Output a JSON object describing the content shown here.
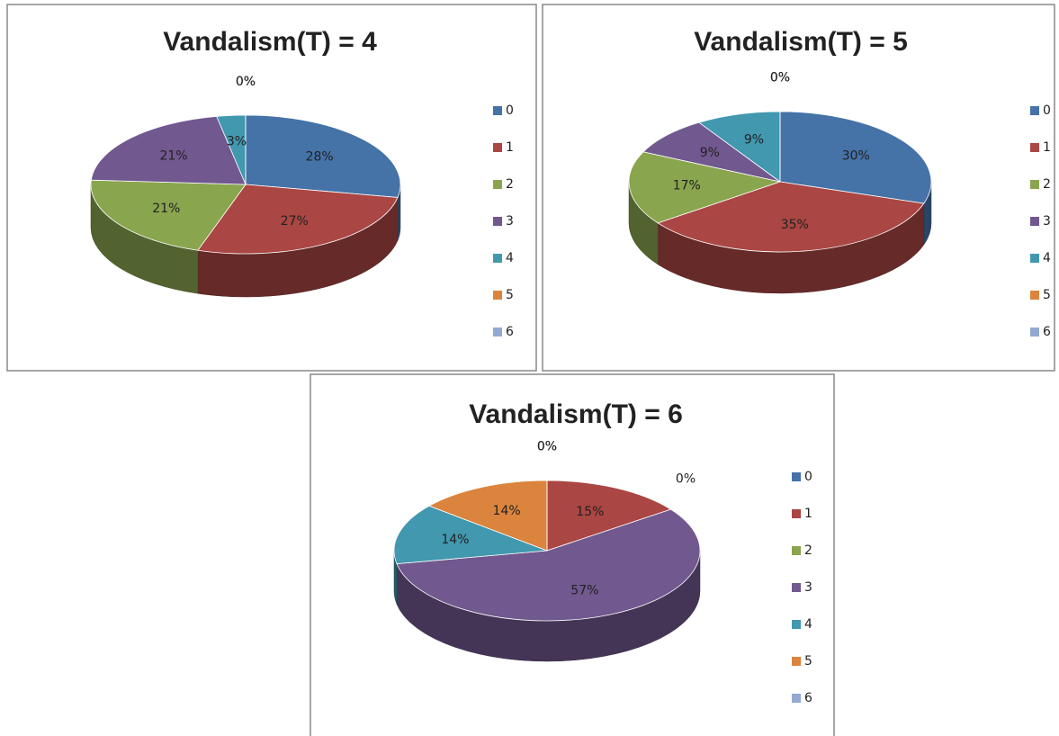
{
  "chart_data": [
    {
      "type": "pie",
      "title": "Vandalism(T) = 4",
      "categories": [
        "0",
        "1",
        "2",
        "3",
        "4",
        "5",
        "6"
      ],
      "values": [
        28,
        27,
        21,
        21,
        3,
        0,
        0
      ],
      "value_labels": [
        "28%",
        "27%",
        "21%",
        "21%",
        "3%",
        "0%",
        "0%"
      ],
      "colors": [
        "#4572a7",
        "#aa4643",
        "#89a54e",
        "#71588f",
        "#4198af",
        "#db843d",
        "#93a9cf"
      ]
    },
    {
      "type": "pie",
      "title": "Vandalism(T) = 5",
      "categories": [
        "0",
        "1",
        "2",
        "3",
        "4",
        "5",
        "6"
      ],
      "values": [
        30,
        35,
        17,
        9,
        9,
        0,
        0
      ],
      "value_labels": [
        "30%",
        "35%",
        "17%",
        "9%",
        "9%",
        "0%",
        "0%"
      ],
      "colors": [
        "#4572a7",
        "#aa4643",
        "#89a54e",
        "#71588f",
        "#4198af",
        "#db843d",
        "#93a9cf"
      ]
    },
    {
      "type": "pie",
      "title": "Vandalism(T) = 6",
      "categories": [
        "0",
        "1",
        "2",
        "3",
        "4",
        "5",
        "6"
      ],
      "values": [
        0,
        15,
        0,
        57,
        14,
        14,
        0
      ],
      "value_labels": [
        "0%",
        "15%",
        "0%",
        "57%",
        "14%",
        "14%",
        "0%"
      ],
      "colors": [
        "#4572a7",
        "#aa4643",
        "#89a54e",
        "#71588f",
        "#4198af",
        "#db843d",
        "#93a9cf"
      ]
    }
  ]
}
